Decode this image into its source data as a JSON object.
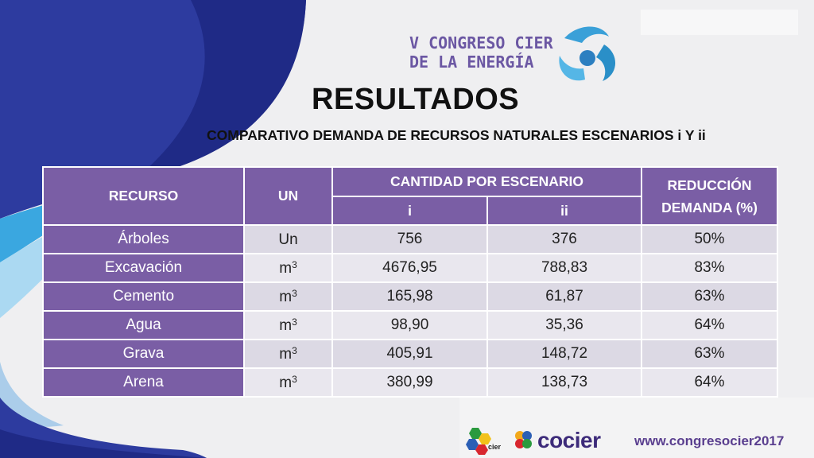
{
  "logo": {
    "line1": "V CONGRESO CIER",
    "line2": "DE LA ENERGÍA"
  },
  "page_title": "RESULTADOS",
  "subtitle": "COMPARATIVO DEMANDA DE RECURSOS NATURALES ESCENARIOS i Y ii",
  "table": {
    "headers": {
      "recurso": "RECURSO",
      "un": "UN",
      "cantidad": "CANTIDAD POR ESCENARIO",
      "i": "i",
      "ii": "ii",
      "reduccion_line1": "REDUCCIÓN",
      "reduccion_line2": "DEMANDA (%)"
    },
    "rows": [
      {
        "recurso": "Árboles",
        "un": "Un",
        "sup": "",
        "i": "756",
        "ii": "376",
        "reduccion": "50%"
      },
      {
        "recurso": "Excavación",
        "un": "m",
        "sup": "3",
        "i": "4676,95",
        "ii": "788,83",
        "reduccion": "83%"
      },
      {
        "recurso": "Cemento",
        "un": "m",
        "sup": "3",
        "i": "165,98",
        "ii": "61,87",
        "reduccion": "63%"
      },
      {
        "recurso": "Agua",
        "un": "m",
        "sup": "3",
        "i": "98,90",
        "ii": "35,36",
        "reduccion": "64%"
      },
      {
        "recurso": "Grava",
        "un": "m",
        "sup": "3",
        "i": "405,91",
        "ii": "148,72",
        "reduccion": "63%"
      },
      {
        "recurso": "Arena",
        "un": "m",
        "sup": "3",
        "i": "380,99",
        "ii": "138,73",
        "reduccion": "64%"
      }
    ]
  },
  "footer": {
    "cier_logo_text": "cier",
    "cocier_text": "cocier",
    "website": "www.congresocier2017"
  },
  "colors": {
    "header_purple": "#7a5ea5",
    "highlight_red": "#e8222e",
    "brand_blue": "#2c3e9e"
  }
}
